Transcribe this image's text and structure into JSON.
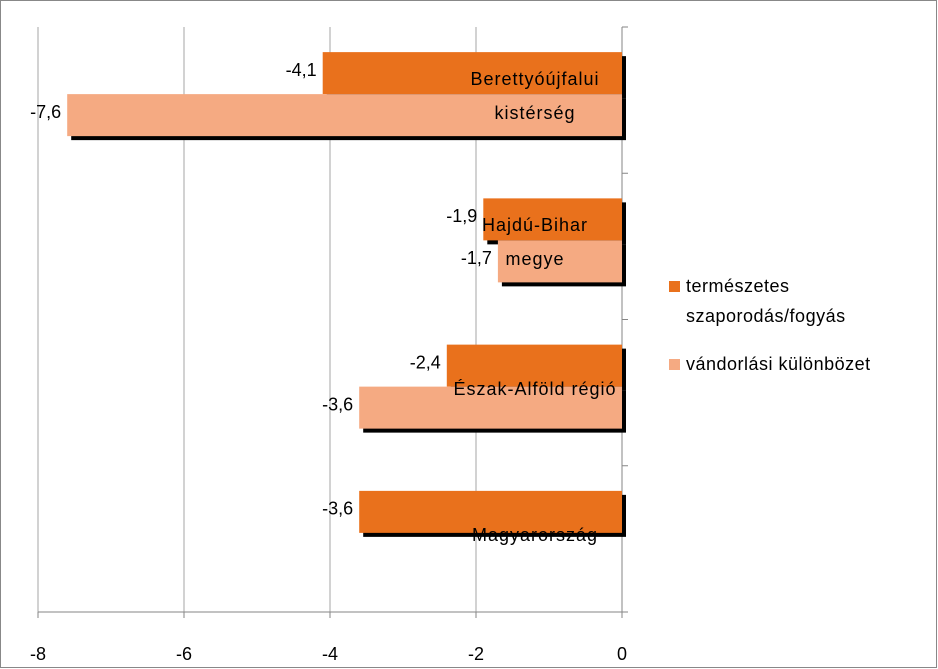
{
  "chart_data": {
    "type": "bar",
    "orientation": "horizontal",
    "categories": [
      "Berettyóújfalui kistérség",
      "Hajdú-Bihar megye",
      "Észak-Alföld régió",
      "Magyarország"
    ],
    "series": [
      {
        "name": "természetes szaporodás/fogyás",
        "color": "#e9711c",
        "values": [
          -4.1,
          -1.9,
          -2.4,
          -3.6
        ],
        "value_labels": [
          "-4,1",
          "-1,9",
          "-2,4",
          "-3,6"
        ]
      },
      {
        "name": "vándorlási különbözet",
        "color": "#f5aa82",
        "values": [
          -7.6,
          -1.7,
          -3.6,
          null
        ],
        "value_labels": [
          "-7,6",
          "-1,7",
          "-3,6",
          null
        ]
      }
    ],
    "xlim": [
      -8,
      0
    ],
    "xticks": [
      -8,
      -6,
      -4,
      -2,
      0
    ],
    "grid": true,
    "legend": "right"
  }
}
